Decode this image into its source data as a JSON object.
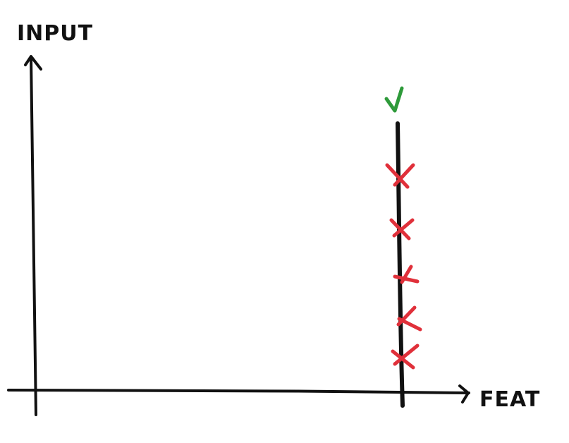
{
  "axes": {
    "y_label": "INPUT",
    "x_label": "FEAT"
  },
  "marks": {
    "check_count": 1,
    "cross_count": 5
  },
  "colors": {
    "ink": "#111111",
    "check": "#2e9a3a",
    "cross": "#e0303a"
  },
  "icons": {
    "check": "check-icon",
    "cross": "cross-icon"
  }
}
